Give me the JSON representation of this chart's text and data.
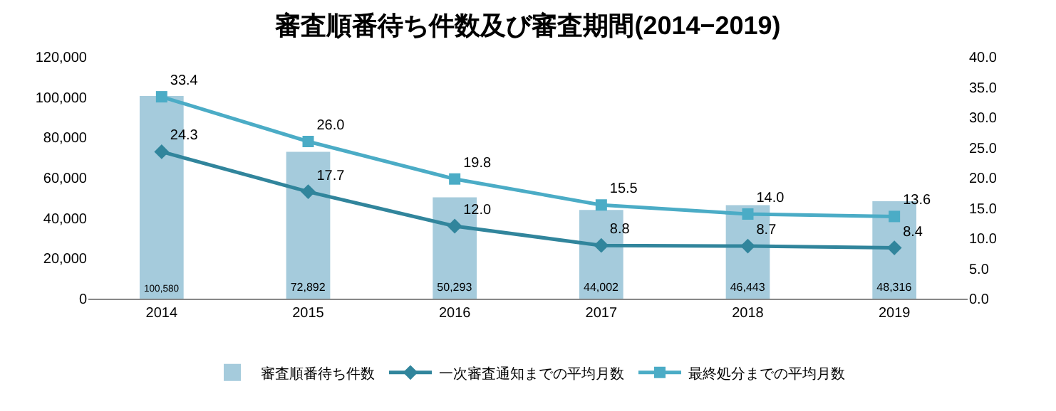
{
  "chart_data": {
    "type": "bar",
    "title": "審査順番待ち件数及び審査期間(2014−2019)",
    "categories": [
      "2014",
      "2015",
      "2016",
      "2017",
      "2018",
      "2019"
    ],
    "series": [
      {
        "name": "審査順番待ち件数",
        "color": "#a5cbdc",
        "values": [
          100580,
          72892,
          50293,
          44002,
          46443,
          48316
        ],
        "value_labels": [
          "100,580",
          "72,892",
          "50,293",
          "44,002",
          "46,443",
          "48,316"
        ]
      },
      {
        "name": "一次審査通知までの平均月数",
        "type": "line",
        "axis": "y2",
        "marker": "diamond",
        "color": "#31859c",
        "values": [
          24.3,
          17.7,
          12.0,
          8.8,
          8.7,
          8.4
        ],
        "value_labels": [
          "24.3",
          "17.7",
          "12.0",
          "8.8",
          "8.7",
          "8.4"
        ]
      },
      {
        "name": "最終処分までの平均月数",
        "type": "line",
        "axis": "y2",
        "marker": "square",
        "color": "#4bacc6",
        "values": [
          33.4,
          26.0,
          19.8,
          15.5,
          14.0,
          13.6
        ],
        "value_labels": [
          "33.4",
          "26.0",
          "19.8",
          "15.5",
          "14.0",
          "13.6"
        ]
      }
    ],
    "ylim": [
      0,
      120000
    ],
    "yticks": [
      0,
      {
        "value": 20000,
        "label": "20,000"
      },
      {
        "value": 40000,
        "label": "40,000"
      },
      {
        "value": 60000,
        "label": "60,000"
      },
      {
        "value": 80000,
        "label": "80,000"
      },
      {
        "value": 100000,
        "label": "100,000"
      },
      {
        "value": 120000,
        "label": "120,000"
      }
    ],
    "y2lim": [
      0,
      40
    ],
    "y2ticks": [
      {
        "value": 0,
        "label": "0.0"
      },
      {
        "value": 5,
        "label": "5.0"
      },
      {
        "value": 10,
        "label": "10.0"
      },
      {
        "value": 15,
        "label": "15.0"
      },
      {
        "value": 20,
        "label": "20.0"
      },
      {
        "value": 25,
        "label": "25.0"
      },
      {
        "value": 30,
        "label": "30.0"
      },
      {
        "value": 35,
        "label": "35.0"
      },
      {
        "value": 40,
        "label": "40.0"
      }
    ],
    "legend": "bottom",
    "grid": false
  }
}
